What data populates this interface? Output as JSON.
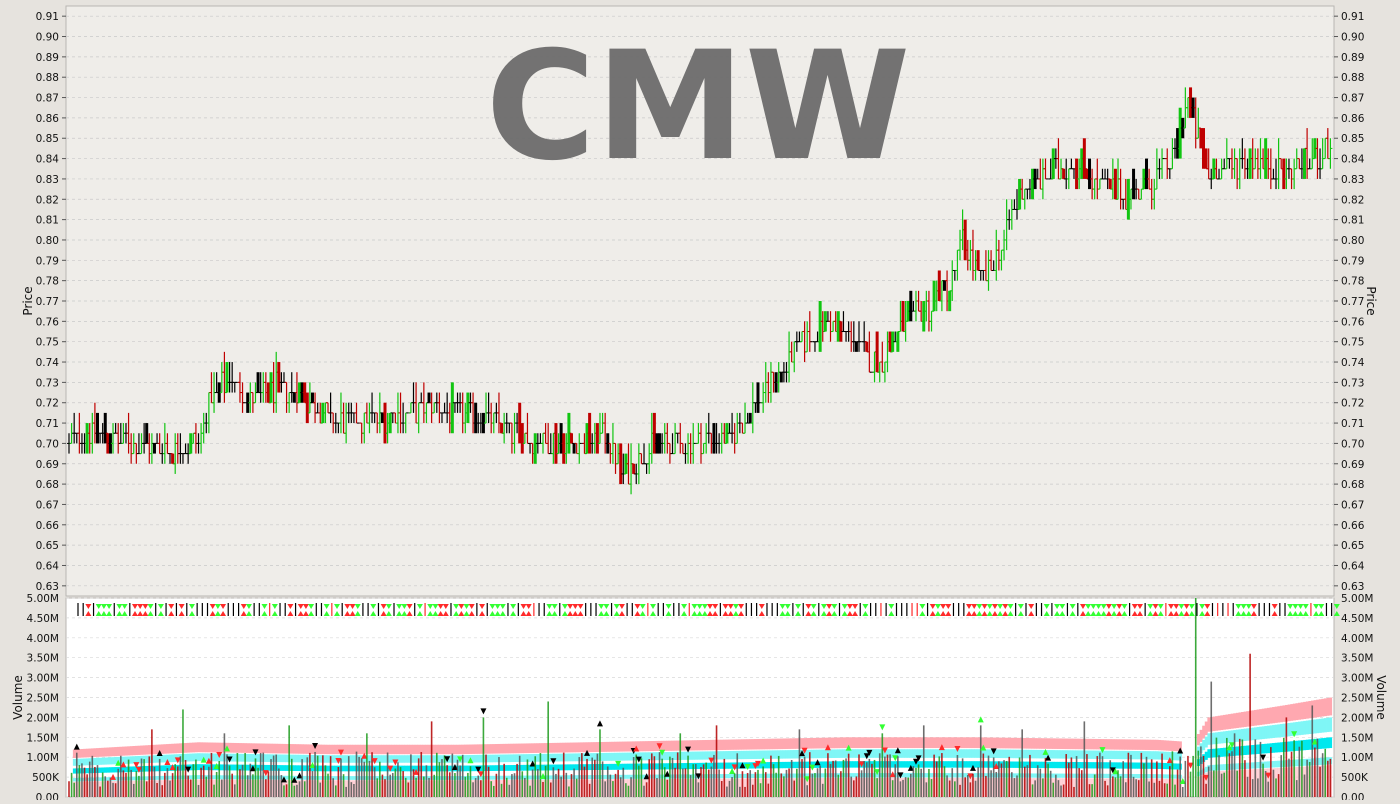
{
  "watermark": "CMW",
  "colors": {
    "background": "#e6e3de",
    "price_panel_bg": "#efede9",
    "volume_panel_bg": "#ffffff",
    "up": "#11c511",
    "down": "#bf0000",
    "neutral": "#000000",
    "grid": "#c9c9c9",
    "watermark": "#6b6b6b",
    "vol_band_pink": "#ffa8b0",
    "vol_band_cyan_light": "#7ff6f6",
    "vol_band_cyan": "#00e8ee",
    "marker_green": "#33ff33",
    "marker_red": "#ff2a2a",
    "marker_black": "#000000"
  },
  "chart_data": [
    {
      "type": "ohlc",
      "panel": "price",
      "ylabel": "Price",
      "ylim": [
        0.625,
        0.915
      ],
      "yticks": [
        "0.63",
        "0.64",
        "0.65",
        "0.66",
        "0.67",
        "0.68",
        "0.69",
        "0.70",
        "0.71",
        "0.72",
        "0.73",
        "0.74",
        "0.75",
        "0.76",
        "0.77",
        "0.78",
        "0.79",
        "0.80",
        "0.81",
        "0.82",
        "0.83",
        "0.84",
        "0.85",
        "0.86",
        "0.87",
        "0.88",
        "0.89",
        "0.90",
        "0.91"
      ],
      "grid": true,
      "close_path": [
        [
          0,
          0.7
        ],
        [
          10,
          0.705
        ],
        [
          25,
          0.7
        ],
        [
          40,
          0.697
        ],
        [
          50,
          0.7
        ],
        [
          55,
          0.722
        ],
        [
          62,
          0.732
        ],
        [
          70,
          0.72
        ],
        [
          80,
          0.727
        ],
        [
          90,
          0.724
        ],
        [
          100,
          0.712
        ],
        [
          110,
          0.71
        ],
        [
          120,
          0.712
        ],
        [
          130,
          0.715
        ],
        [
          140,
          0.718
        ],
        [
          150,
          0.715
        ],
        [
          160,
          0.713
        ],
        [
          170,
          0.705
        ],
        [
          180,
          0.702
        ],
        [
          190,
          0.701
        ],
        [
          200,
          0.7
        ],
        [
          208,
          0.704
        ],
        [
          214,
          0.683
        ],
        [
          222,
          0.697
        ],
        [
          230,
          0.698
        ],
        [
          240,
          0.7
        ],
        [
          255,
          0.702
        ],
        [
          262,
          0.713
        ],
        [
          272,
          0.732
        ],
        [
          282,
          0.746
        ],
        [
          292,
          0.758
        ],
        [
          302,
          0.752
        ],
        [
          312,
          0.738
        ],
        [
          322,
          0.758
        ],
        [
          332,
          0.767
        ],
        [
          340,
          0.778
        ],
        [
          345,
          0.8
        ],
        [
          352,
          0.778
        ],
        [
          360,
          0.797
        ],
        [
          368,
          0.826
        ],
        [
          378,
          0.832
        ],
        [
          388,
          0.838
        ],
        [
          398,
          0.827
        ],
        [
          408,
          0.822
        ],
        [
          418,
          0.828
        ],
        [
          426,
          0.84
        ],
        [
          432,
          0.868
        ],
        [
          440,
          0.832
        ],
        [
          448,
          0.836
        ],
        [
          458,
          0.838
        ],
        [
          468,
          0.833
        ],
        [
          478,
          0.838
        ],
        [
          487,
          0.843
        ]
      ],
      "total_bars": 488
    },
    {
      "type": "bar",
      "panel": "volume",
      "ylabel": "Volume",
      "ylim": [
        0,
        5000000
      ],
      "yticks": [
        "0.00",
        "500K",
        "1.00M",
        "1.50M",
        "2.00M",
        "2.50M",
        "3.00M",
        "3.50M",
        "4.00M",
        "4.50M",
        "5.00M"
      ],
      "grid": true,
      "average_band_path": [
        [
          0,
          0.95
        ],
        [
          50,
          1.1
        ],
        [
          100,
          1.05
        ],
        [
          150,
          1.05
        ],
        [
          200,
          1.1
        ],
        [
          250,
          1.15
        ],
        [
          300,
          1.2
        ],
        [
          350,
          1.2
        ],
        [
          420,
          1.15
        ],
        [
          434,
          1.1
        ],
        [
          440,
          1.6
        ],
        [
          470,
          1.85
        ],
        [
          487,
          2.0
        ]
      ],
      "volume_spikes": [
        [
          32,
          1.7
        ],
        [
          44,
          2.2
        ],
        [
          60,
          1.6
        ],
        [
          85,
          1.8
        ],
        [
          115,
          1.6
        ],
        [
          140,
          1.9
        ],
        [
          160,
          2.0
        ],
        [
          185,
          2.4
        ],
        [
          205,
          1.7
        ],
        [
          236,
          1.6
        ],
        [
          250,
          1.8
        ],
        [
          282,
          1.7
        ],
        [
          314,
          1.6
        ],
        [
          330,
          1.8
        ],
        [
          352,
          1.8
        ],
        [
          368,
          1.7
        ],
        [
          392,
          1.9
        ],
        [
          435,
          5.0
        ],
        [
          441,
          2.9
        ],
        [
          450,
          1.6
        ],
        [
          456,
          3.6
        ],
        [
          470,
          2.0
        ],
        [
          480,
          2.3
        ]
      ]
    }
  ]
}
